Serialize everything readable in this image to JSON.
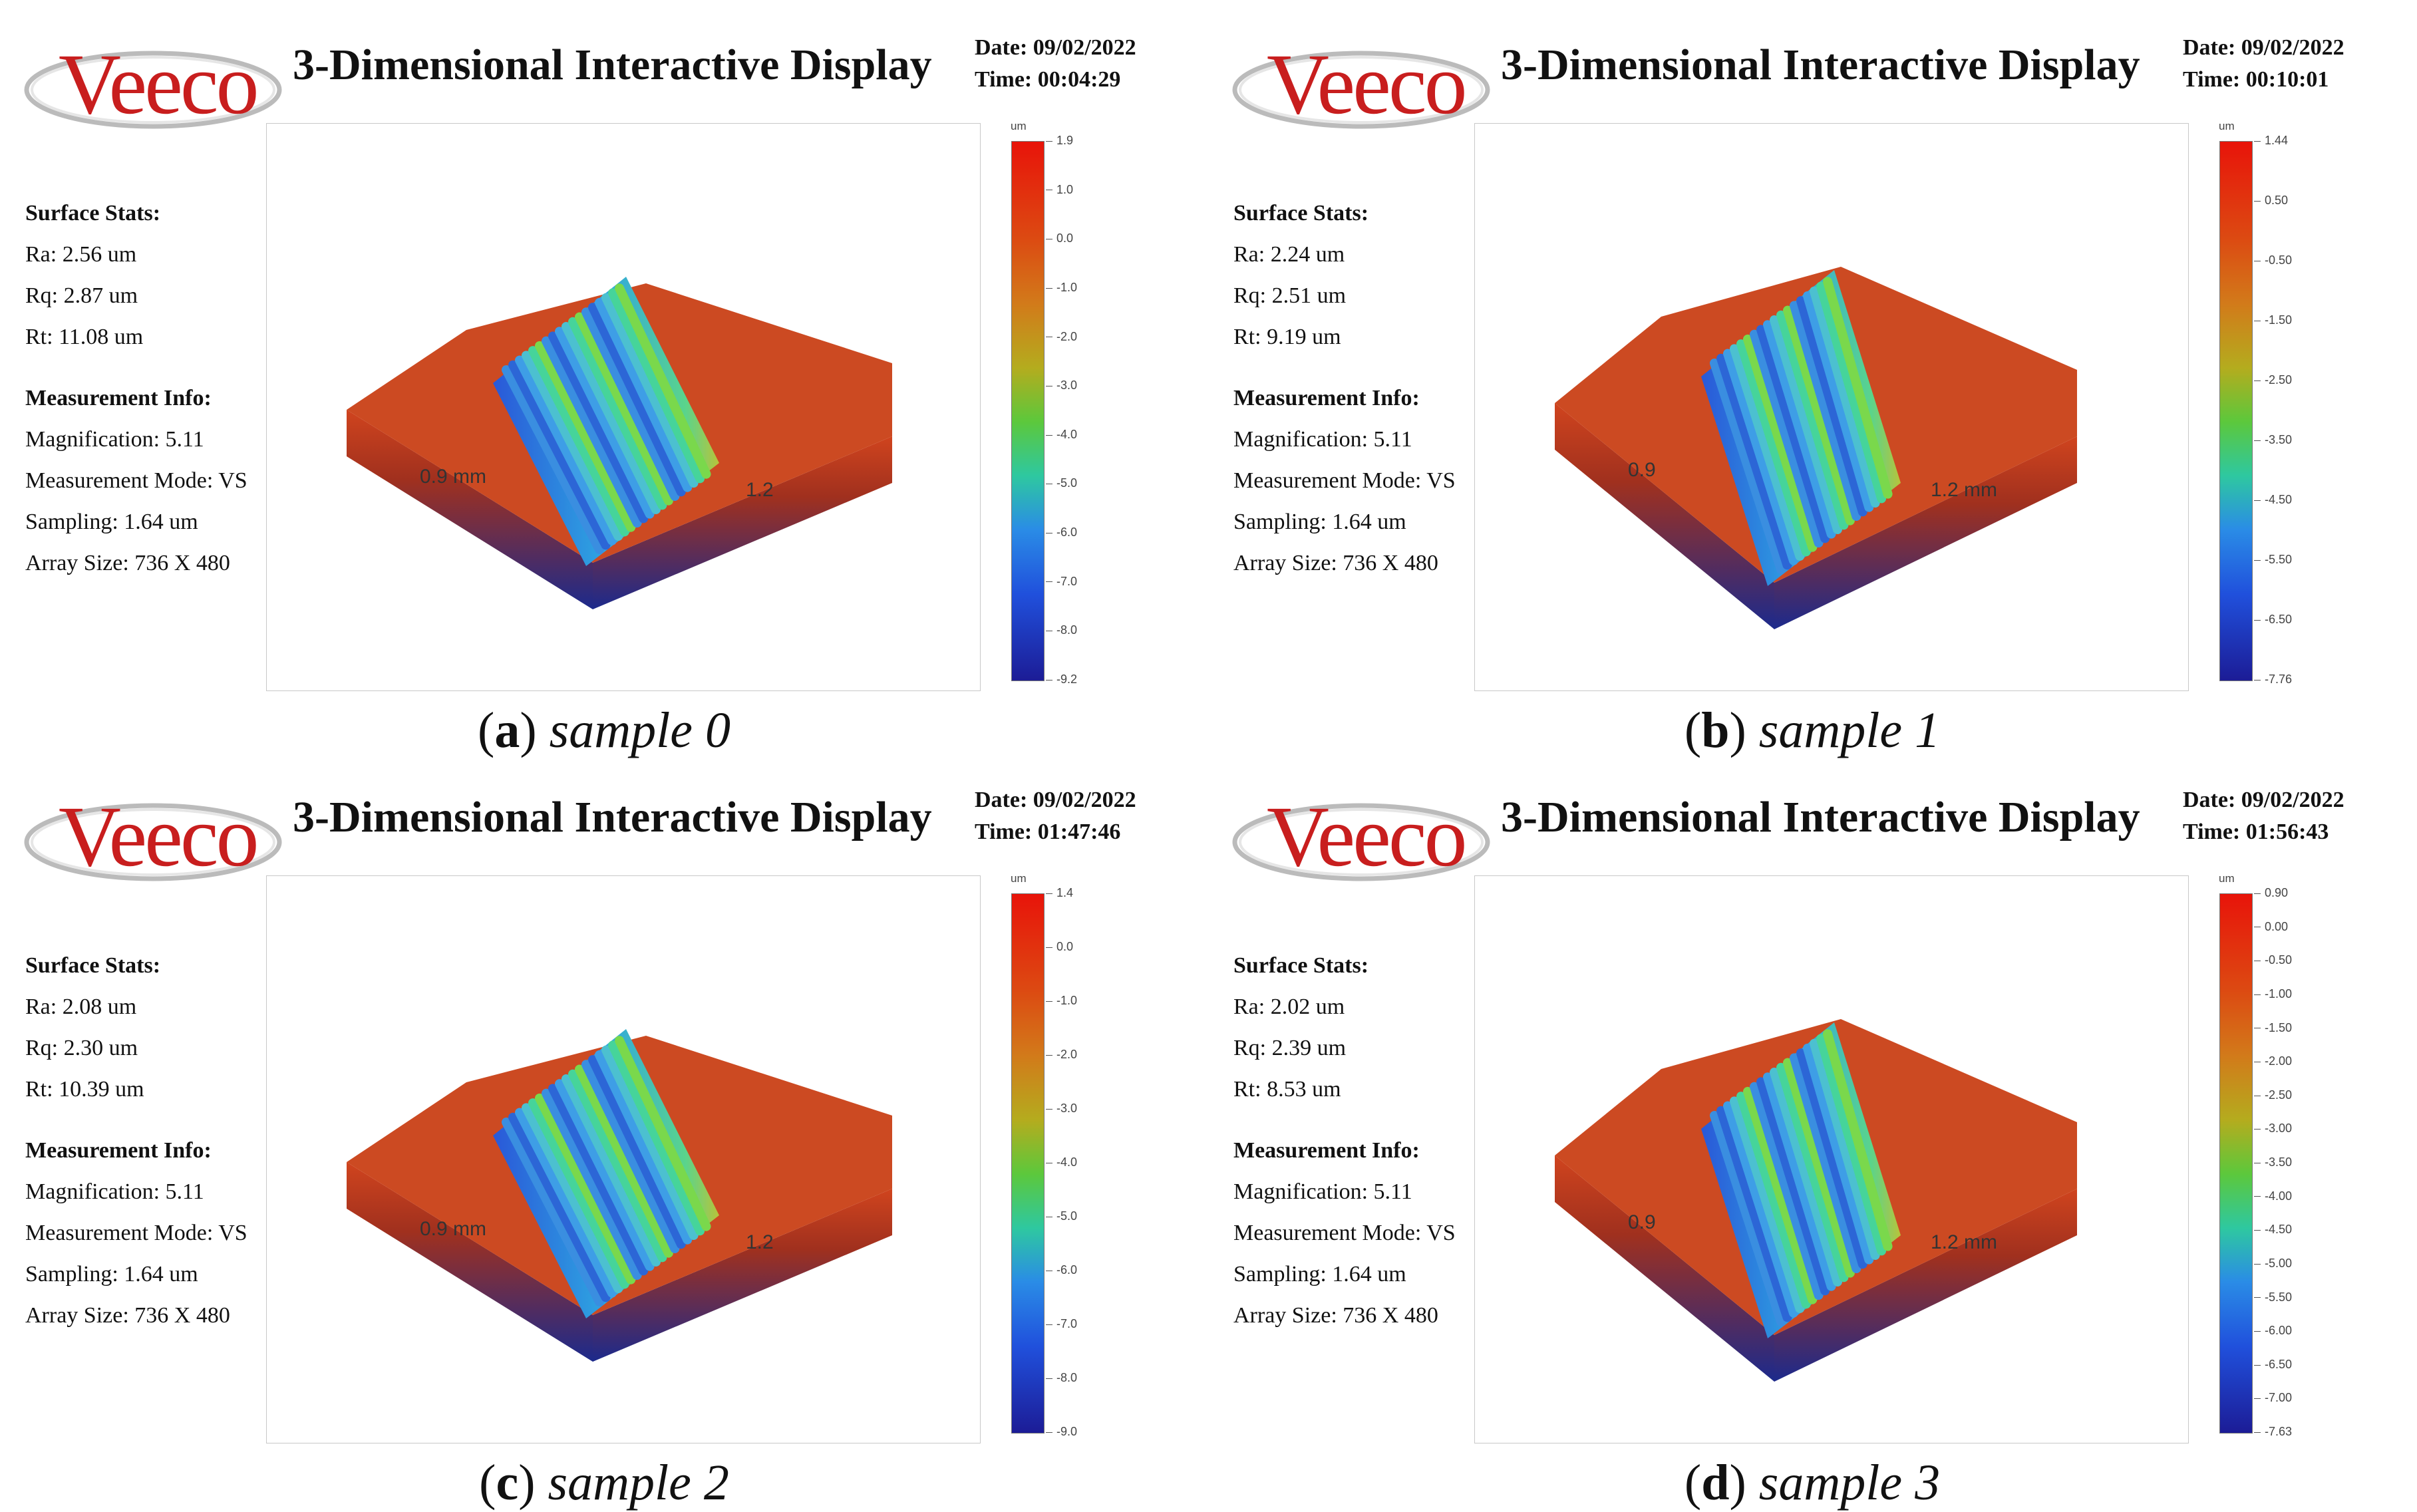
{
  "colors": {
    "brand": "#c81e1e",
    "surface": "#cc4a22",
    "surface_dark": "#1c2a8c"
  },
  "panels": [
    {
      "caption_letter": "a",
      "caption_sample": "sample 0",
      "logo": "Veeco",
      "title": "3-Dimensional Interactive Display",
      "date": "Date: 09/02/2022",
      "time": "Time: 00:04:29",
      "surface_stats_heading": "Surface Stats:",
      "ra": "Ra: 2.56 um",
      "rq": "Rq: 2.87 um",
      "rt": "Rt: 11.08 um",
      "measurement_heading": "Measurement Info:",
      "magnification": "Magnification: 5.11",
      "mode": "Measurement Mode: VS",
      "sampling": "Sampling: 1.64 um",
      "array": "Array Size: 736 X 480",
      "axis_x": "0.9 mm",
      "axis_y": "1.2",
      "unit": "um",
      "scale": [
        "1.9",
        "1.0",
        "0.0",
        "-1.0",
        "-2.0",
        "-3.0",
        "-4.0",
        "-5.0",
        "-6.0",
        "-7.0",
        "-8.0",
        "-9.2"
      ]
    },
    {
      "caption_letter": "b",
      "caption_sample": "sample 1",
      "logo": "Veeco",
      "title": "3-Dimensional Interactive Display",
      "date": "Date: 09/02/2022",
      "time": "Time: 00:10:01",
      "surface_stats_heading": "Surface Stats:",
      "ra": "Ra: 2.24 um",
      "rq": "Rq: 2.51 um",
      "rt": "Rt: 9.19 um",
      "measurement_heading": "Measurement Info:",
      "magnification": "Magnification: 5.11",
      "mode": "Measurement Mode: VS",
      "sampling": "Sampling: 1.64 um",
      "array": "Array Size: 736 X 480",
      "axis_x": "0.9",
      "axis_y": "1.2 mm",
      "unit": "um",
      "scale": [
        "1.44",
        "0.50",
        "-0.50",
        "-1.50",
        "-2.50",
        "-3.50",
        "-4.50",
        "-5.50",
        "-6.50",
        "-7.76"
      ]
    },
    {
      "caption_letter": "c",
      "caption_sample": "sample 2",
      "logo": "Veeco",
      "title": "3-Dimensional Interactive Display",
      "date": "Date: 09/02/2022",
      "time": "Time: 01:47:46",
      "surface_stats_heading": "Surface Stats:",
      "ra": "Ra: 2.08 um",
      "rq": "Rq: 2.30 um",
      "rt": "Rt: 10.39 um",
      "measurement_heading": "Measurement Info:",
      "magnification": "Magnification: 5.11",
      "mode": "Measurement Mode: VS",
      "sampling": "Sampling: 1.64 um",
      "array": "Array Size: 736 X 480",
      "axis_x": "0.9 mm",
      "axis_y": "1.2",
      "unit": "um",
      "scale": [
        "1.4",
        "0.0",
        "-1.0",
        "-2.0",
        "-3.0",
        "-4.0",
        "-5.0",
        "-6.0",
        "-7.0",
        "-8.0",
        "-9.0"
      ]
    },
    {
      "caption_letter": "d",
      "caption_sample": "sample 3",
      "logo": "Veeco",
      "title": "3-Dimensional Interactive Display",
      "date": "Date: 09/02/2022",
      "time": "Time: 01:56:43",
      "surface_stats_heading": "Surface Stats:",
      "ra": "Ra: 2.02 um",
      "rq": "Rq: 2.39 um",
      "rt": "Rt: 8.53 um",
      "measurement_heading": "Measurement Info:",
      "magnification": "Magnification: 5.11",
      "mode": "Measurement Mode: VS",
      "sampling": "Sampling: 1.64 um",
      "array": "Array Size: 736 X 480",
      "axis_x": "0.9",
      "axis_y": "1.2 mm",
      "unit": "um",
      "scale": [
        "0.90",
        "0.00",
        "-0.50",
        "-1.00",
        "-1.50",
        "-2.00",
        "-2.50",
        "-3.00",
        "-3.50",
        "-4.00",
        "-4.50",
        "-5.00",
        "-5.50",
        "-6.00",
        "-6.50",
        "-7.00",
        "-7.63"
      ]
    }
  ]
}
